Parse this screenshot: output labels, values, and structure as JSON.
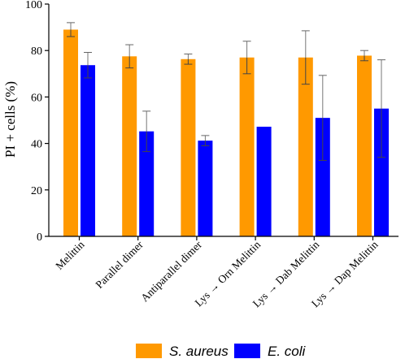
{
  "chart_data": {
    "type": "bar",
    "ylabel": "PI + cells (%)",
    "ylim": [
      0,
      100
    ],
    "yticks": [
      "0",
      "20",
      "40",
      "60",
      "80",
      "100"
    ],
    "categories": [
      "Melittin",
      "Parallel dimer",
      "Antiparallel dimer",
      "Lys → Orn Melittin",
      "Lys → Dab Melittin",
      "Lys → Dap Melittin"
    ],
    "series": [
      {
        "name": "S. aureus",
        "color": "#ff9900",
        "values": [
          89,
          77.5,
          76.3,
          77,
          77,
          77.8
        ],
        "errors": [
          3,
          5,
          2.2,
          7,
          11.5,
          2.2
        ]
      },
      {
        "name": "E. coli",
        "color": "#0000ff",
        "values": [
          73.7,
          45.2,
          41.2,
          47.2,
          51,
          55
        ],
        "errors": [
          5.5,
          8.7,
          2.2,
          0,
          18.3,
          21
        ]
      }
    ],
    "legend_position": "bottom"
  }
}
